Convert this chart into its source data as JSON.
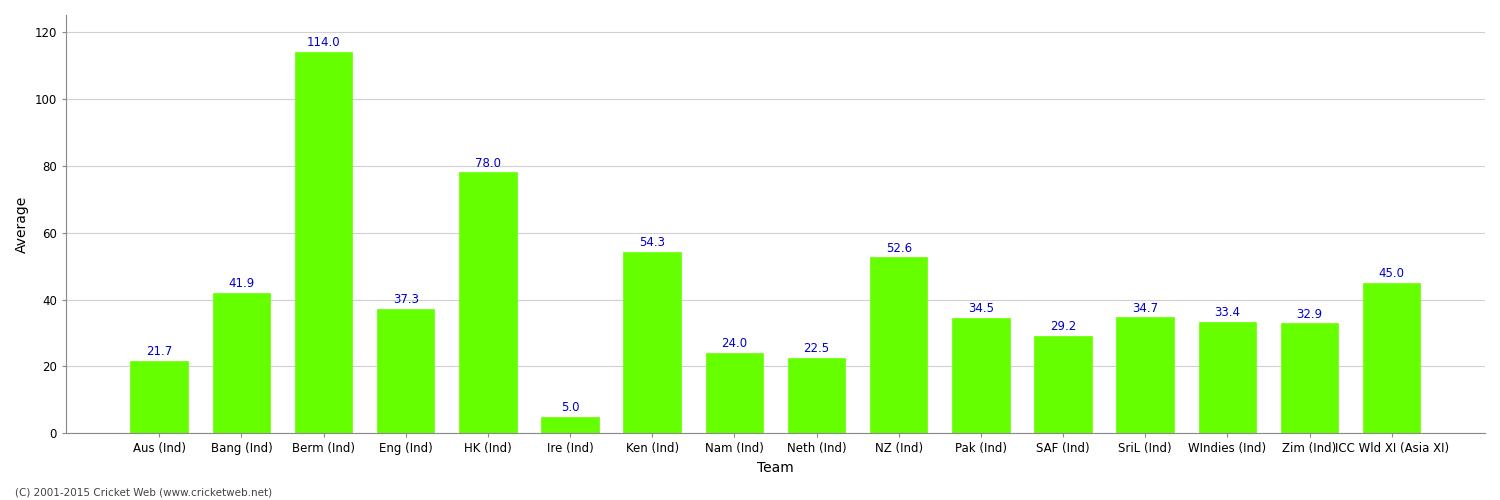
{
  "categories": [
    "Aus (Ind)",
    "Bang (Ind)",
    "Berm (Ind)",
    "Eng (Ind)",
    "HK (Ind)",
    "Ire (Ind)",
    "Ken (Ind)",
    "Nam (Ind)",
    "Neth (Ind)",
    "NZ (Ind)",
    "Pak (Ind)",
    "SAF (Ind)",
    "SriL (Ind)",
    "WIndies (Ind)",
    "Zim (Ind)",
    "ICC Wld XI (Asia XI)"
  ],
  "values": [
    21.7,
    41.9,
    114.0,
    37.3,
    78.0,
    5.0,
    54.3,
    24.0,
    22.5,
    52.6,
    34.5,
    29.2,
    34.7,
    33.4,
    32.9,
    45.0
  ],
  "bar_color": "#66ff00",
  "bar_edge_color": "#66ff00",
  "label_color": "#0000cc",
  "ylabel": "Average",
  "xlabel": "Team",
  "ylim": [
    0,
    125
  ],
  "yticks": [
    0,
    20,
    40,
    60,
    80,
    100,
    120
  ],
  "grid_color": "#d0d0d0",
  "bg_color": "#ffffff",
  "fig_bg_color": "#ffffff",
  "label_fontsize": 8.5,
  "axis_label_fontsize": 10,
  "tick_fontsize": 8.5,
  "footer_text": "(C) 2001-2015 Cricket Web (www.cricketweb.net)"
}
